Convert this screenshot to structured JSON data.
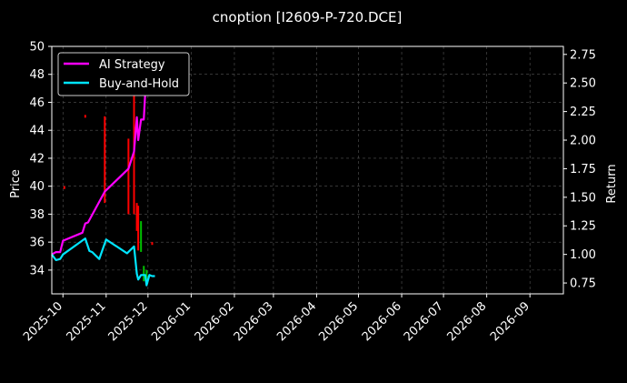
{
  "chart_data": {
    "type": "line",
    "title": "cnoption [I2609-P-720.DCE]",
    "xlabel": "",
    "ylabel": "Price",
    "y2label": "Return",
    "xlim": [
      "2025-09-23",
      "2026-09-25"
    ],
    "ylim": [
      32.3,
      50
    ],
    "y2lim": [
      0.655,
      2.82
    ],
    "x_ticks": [
      "2025-10",
      "2025-11",
      "2025-12",
      "2026-01",
      "2026-02",
      "2026-03",
      "2026-04",
      "2026-05",
      "2026-06",
      "2026-07",
      "2026-08",
      "2026-09"
    ],
    "y_ticks": [
      34,
      36,
      38,
      40,
      42,
      44,
      46,
      48,
      50
    ],
    "y2_ticks": [
      "0.75",
      "1.00",
      "1.25",
      "1.50",
      "1.75",
      "2.00",
      "2.25",
      "2.50",
      "2.75"
    ],
    "grid": true,
    "legend_position": "top-left",
    "series": [
      {
        "name": "AI Strategy",
        "axis": "right",
        "color": "#ff00ff",
        "points": [
          [
            "2025-09-23",
            1.0
          ],
          [
            "2025-09-26",
            1.02
          ],
          [
            "2025-09-29",
            1.02
          ],
          [
            "2025-10-01",
            1.12
          ],
          [
            "2025-10-15",
            1.19
          ],
          [
            "2025-10-17",
            1.27
          ],
          [
            "2025-10-19",
            1.28
          ],
          [
            "2025-10-31",
            1.55
          ],
          [
            "2025-11-17",
            1.75
          ],
          [
            "2025-11-21",
            1.9
          ],
          [
            "2025-11-23",
            2.2
          ],
          [
            "2025-11-24",
            2.0
          ],
          [
            "2025-11-26",
            2.18
          ],
          [
            "2025-11-28",
            2.18
          ],
          [
            "2025-11-30",
            2.62
          ],
          [
            "2025-12-02",
            2.73
          ]
        ]
      },
      {
        "name": "Buy-and-Hold",
        "axis": "right",
        "color": "#00e5ff",
        "points": [
          [
            "2025-09-23",
            1.0
          ],
          [
            "2025-09-26",
            0.95
          ],
          [
            "2025-09-29",
            0.96
          ],
          [
            "2025-10-01",
            1.0
          ],
          [
            "2025-10-17",
            1.14
          ],
          [
            "2025-10-20",
            1.03
          ],
          [
            "2025-10-22",
            1.02
          ],
          [
            "2025-10-27",
            0.96
          ],
          [
            "2025-11-01",
            1.13
          ],
          [
            "2025-11-16",
            1.01
          ],
          [
            "2025-11-21",
            1.07
          ],
          [
            "2025-11-23",
            0.83
          ],
          [
            "2025-11-24",
            0.78
          ],
          [
            "2025-11-26",
            0.82
          ],
          [
            "2025-11-29",
            0.82
          ],
          [
            "2025-11-30",
            0.73
          ],
          [
            "2025-12-02",
            0.82
          ],
          [
            "2025-12-04",
            0.81
          ],
          [
            "2025-12-06",
            0.81
          ]
        ]
      }
    ],
    "price_bars": [
      {
        "date": "2025-10-02",
        "low": 39.8,
        "high": 40.0,
        "color": "#ff0000"
      },
      {
        "date": "2025-10-17",
        "low": 44.9,
        "high": 45.1,
        "color": "#ff0000"
      },
      {
        "date": "2025-10-31",
        "low": 38.8,
        "high": 45.0,
        "color": "#ff0000"
      },
      {
        "date": "2025-11-17",
        "low": 38.0,
        "high": 43.4,
        "color": "#ff0000"
      },
      {
        "date": "2025-11-21",
        "low": 38.0,
        "high": 46.7,
        "color": "#ff0000"
      },
      {
        "date": "2025-11-23",
        "low": 36.8,
        "high": 38.8,
        "color": "#ff0000"
      },
      {
        "date": "2025-11-24",
        "low": 35.4,
        "high": 38.6,
        "color": "#ff0000"
      },
      {
        "date": "2025-11-26",
        "low": 35.3,
        "high": 37.5,
        "color": "#00c000"
      },
      {
        "date": "2025-11-28",
        "low": 33.2,
        "high": 34.3,
        "color": "#00c000"
      },
      {
        "date": "2025-11-30",
        "low": 33.0,
        "high": 34.0,
        "color": "#00c000"
      },
      {
        "date": "2025-12-04",
        "low": 35.8,
        "high": 36.0,
        "color": "#ff0000"
      }
    ]
  }
}
